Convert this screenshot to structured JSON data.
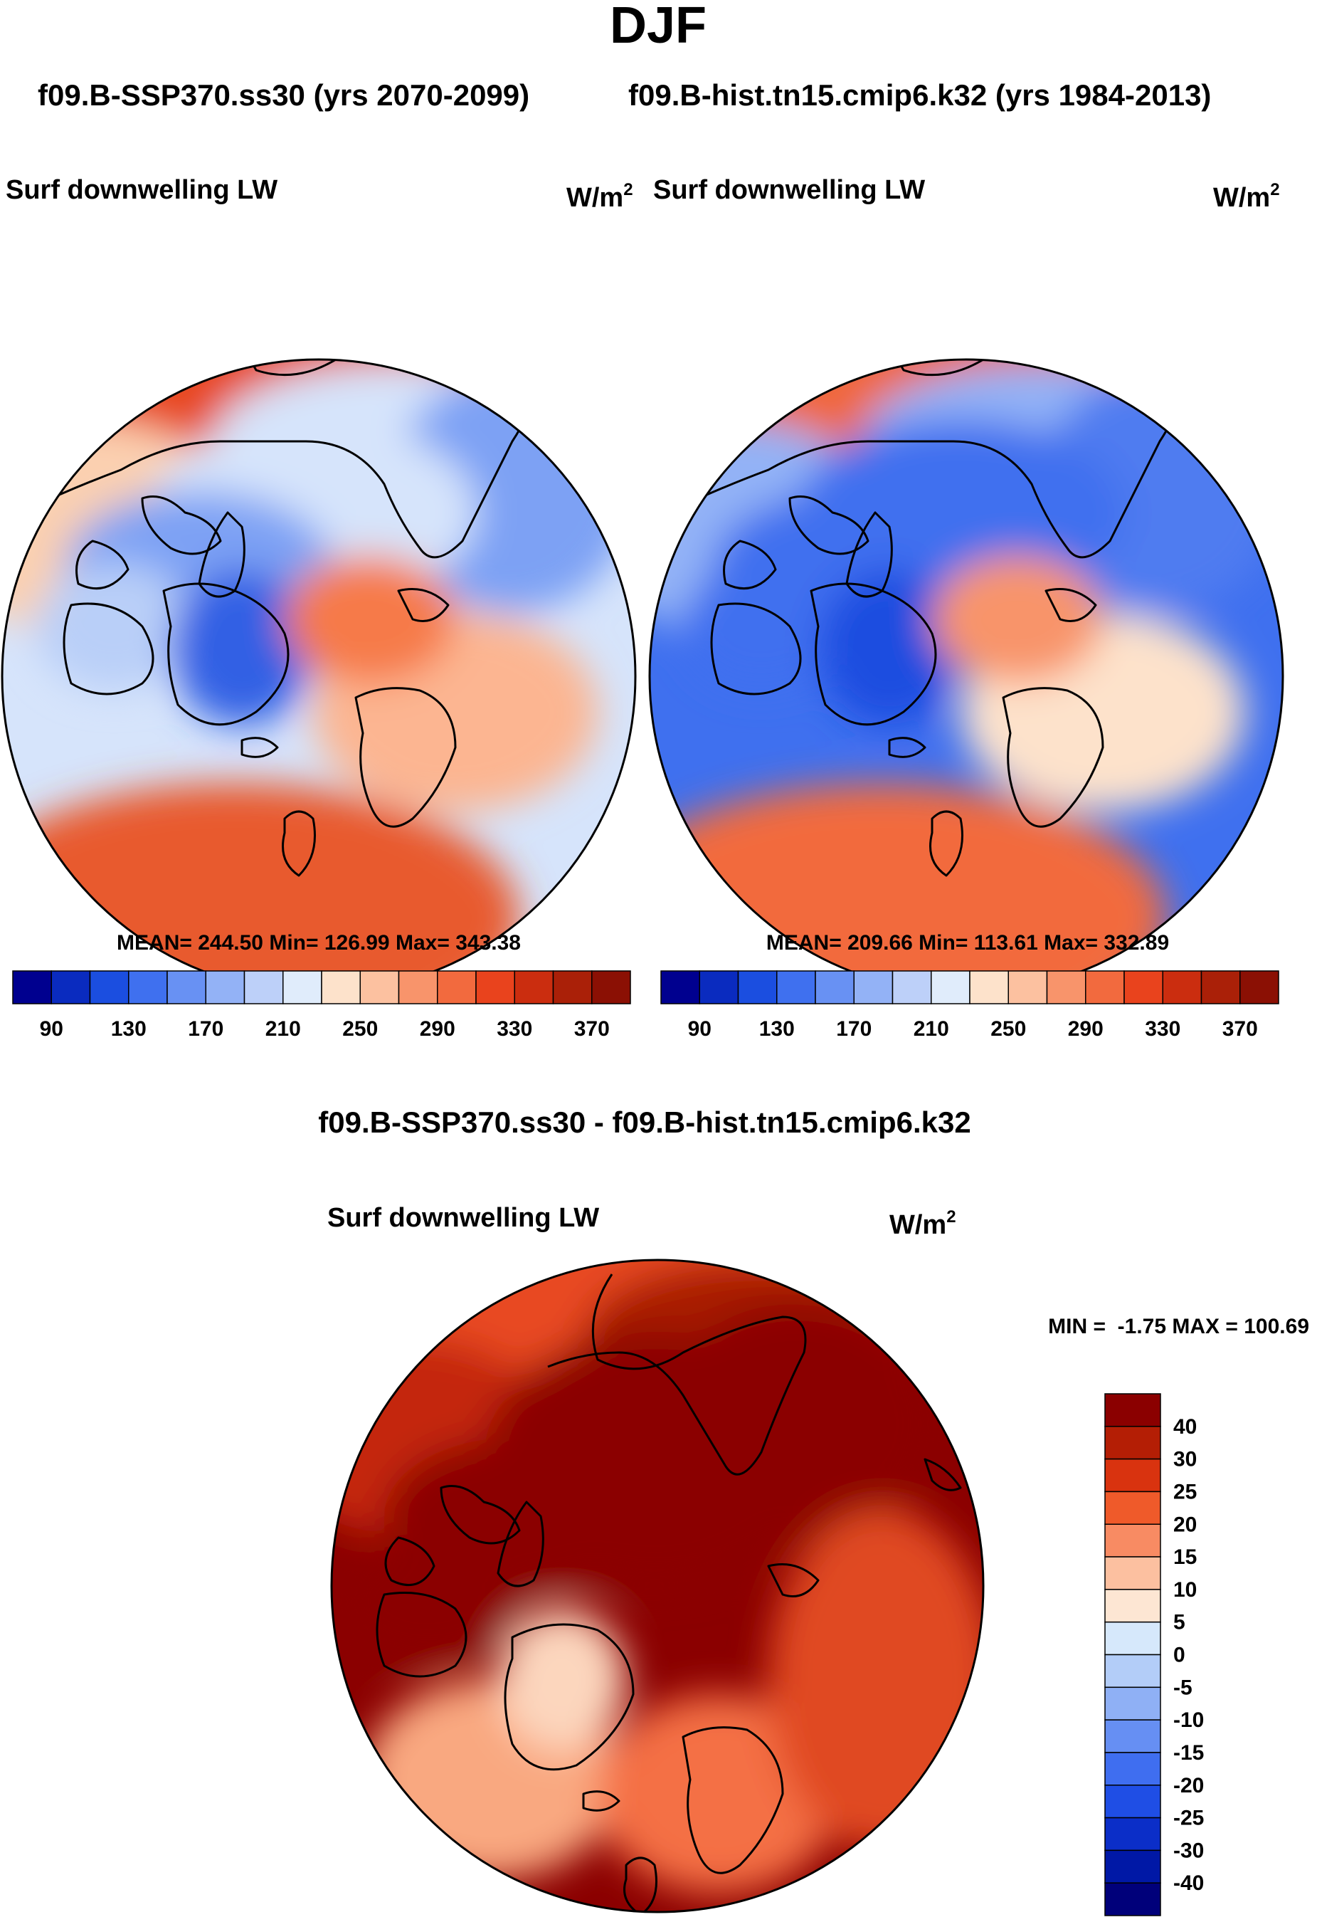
{
  "title": "DJF",
  "subtitle_left": "f09.B-SSP370.ss30 (yrs 2070-2099)",
  "subtitle_right": "f09.B-hist.tn15.cmip6.k32 (yrs 1984-2013)",
  "diff_title": "f09.B-SSP370.ss30 - f09.B-hist.tn15.cmip6.k32",
  "chart_data": [
    {
      "type": "heatmap",
      "projection": "north-polar-stereographic",
      "title": "Surf downwelling LW",
      "units": "W/m",
      "units_exp": "2",
      "stats": {
        "mean_label": "MEAN=",
        "mean": "244.50",
        "min_label": "Min=",
        "min": "126.99",
        "max_label": "Max=",
        "max": "343.38"
      },
      "colorbar": {
        "orientation": "horizontal",
        "colors": [
          "#00008f",
          "#0a2bbf",
          "#1b4ee0",
          "#3f70ef",
          "#6891f3",
          "#93b2f6",
          "#bdd0f9",
          "#e0ecfb",
          "#fde2cb",
          "#fcc1a0",
          "#f8946b",
          "#f26a3e",
          "#e9431d",
          "#cb2d0f",
          "#aa2008",
          "#8b1004"
        ],
        "tick_labels": [
          "90",
          "130",
          "170",
          "210",
          "250",
          "290",
          "330",
          "370"
        ],
        "tick_positions": [
          1,
          3,
          5,
          7,
          9,
          11,
          13,
          15
        ]
      },
      "regions": {
        "pole": "#d6e4fb",
        "greenland": "#3060e4",
        "canada": "#7da1f4",
        "siberia": "#7da1f4",
        "eurasia_n": "#d6e4fb",
        "pacific": "#e84a24",
        "atlantic": "#e85a2d",
        "north_atlantic": "#f67a48",
        "europe": "#fcb591",
        "alaska": "#fbd0b0",
        "hudson": "#b9cff8"
      }
    },
    {
      "type": "heatmap",
      "projection": "north-polar-stereographic",
      "title": "Surf downwelling LW",
      "units": "W/m",
      "units_exp": "2",
      "stats": {
        "mean_label": "MEAN=",
        "mean": "209.66",
        "min_label": "Min=",
        "min": "113.61",
        "max_label": "Max=",
        "max": "332.89"
      },
      "colorbar": {
        "orientation": "horizontal",
        "colors": [
          "#00008f",
          "#0a2bbf",
          "#1b4ee0",
          "#3f70ef",
          "#6891f3",
          "#93b2f6",
          "#bdd0f9",
          "#e0ecfb",
          "#fde2cb",
          "#fcc1a0",
          "#f8946b",
          "#f26a3e",
          "#e9431d",
          "#cb2d0f",
          "#aa2008",
          "#8b1004"
        ],
        "tick_labels": [
          "90",
          "130",
          "170",
          "210",
          "250",
          "290",
          "330",
          "370"
        ],
        "tick_positions": [
          1,
          3,
          5,
          7,
          9,
          11,
          13,
          15
        ]
      },
      "regions": {
        "pole": "#3f70ef",
        "greenland": "#1b4ee0",
        "canada": "#3f70ef",
        "siberia": "#4f7cf0",
        "eurasia_n": "#93b2f6",
        "pacific": "#f0683c",
        "atlantic": "#f26a3e",
        "north_atlantic": "#f8946b",
        "europe": "#fde2cb",
        "alaska": "#93b2f6",
        "hudson": "#3f70ef"
      }
    },
    {
      "type": "heatmap",
      "projection": "north-polar-stereographic",
      "title": "Surf downwelling LW",
      "units": "W/m",
      "units_exp": "2",
      "minmax_text": "MIN =  -1.75 MAX = 100.69",
      "colorbar": {
        "orientation": "vertical",
        "colors_top_to_bottom": [
          "#8b0000",
          "#b41e05",
          "#d9330f",
          "#ef5a2a",
          "#f88b63",
          "#fcc0a0",
          "#fde6d3",
          "#d6e8fb",
          "#b3cdf8",
          "#8fb0f5",
          "#668ff3",
          "#3f6ef0",
          "#1f4ee5",
          "#0b2ec8",
          "#0018a6",
          "#00007a"
        ],
        "tick_labels": [
          "40",
          "30",
          "25",
          "20",
          "15",
          "10",
          "5",
          "0",
          "-5",
          "-10",
          "-15",
          "-20",
          "-25",
          "-30",
          "-40"
        ]
      },
      "regions": {
        "pole": "#8b0000",
        "greenland": "#fcd6bd",
        "canada": "#8b0000",
        "siberia": "#8b0000",
        "eurasia_n": "#a91a04",
        "pacific": "#e84a24",
        "atlantic": "#e04a20",
        "north_atlantic": "#f9a880",
        "europe": "#f47045",
        "alaska": "#c42808",
        "hudson": "#8b0000"
      }
    }
  ]
}
